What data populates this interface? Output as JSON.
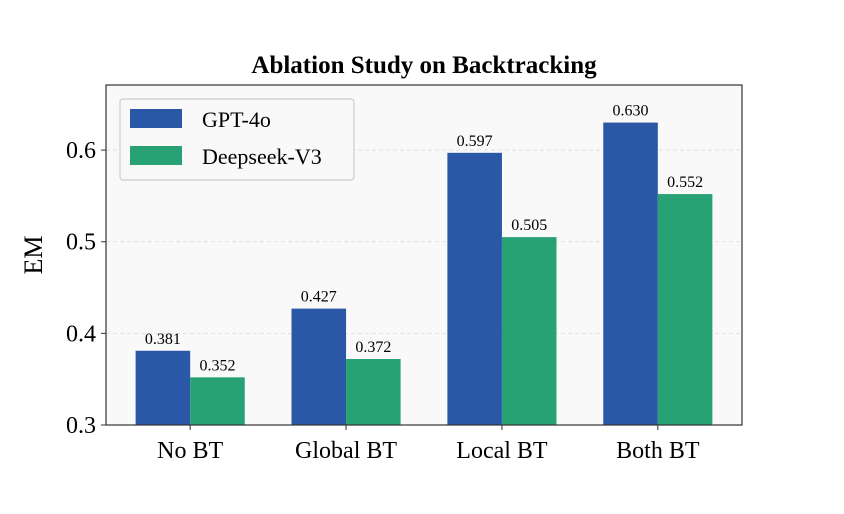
{
  "chart_data": {
    "type": "bar",
    "title": "Ablation Study on Backtracking",
    "xlabel": "",
    "ylabel": "EM",
    "categories": [
      "No BT",
      "Global BT",
      "Local BT",
      "Both BT"
    ],
    "series": [
      {
        "name": "GPT-4o",
        "values": [
          0.381,
          0.427,
          0.597,
          0.63
        ],
        "labels": [
          "0.381",
          "0.427",
          "0.597",
          "0.630"
        ],
        "color": "#2B57A7"
      },
      {
        "name": "Deepseek-V3",
        "values": [
          0.352,
          0.372,
          0.505,
          0.552
        ],
        "labels": [
          "0.352",
          "0.372",
          "0.505",
          "0.552"
        ],
        "color": "#28A274"
      }
    ],
    "ylim": [
      0.3,
      0.671
    ],
    "yticks": [
      0.3,
      0.4,
      0.5,
      0.6
    ],
    "ytick_labels": [
      "0.3",
      "0.4",
      "0.5",
      "0.6"
    ],
    "grid": "horizontal dashed",
    "legend": "top-left",
    "background": "#F9F9F9"
  }
}
